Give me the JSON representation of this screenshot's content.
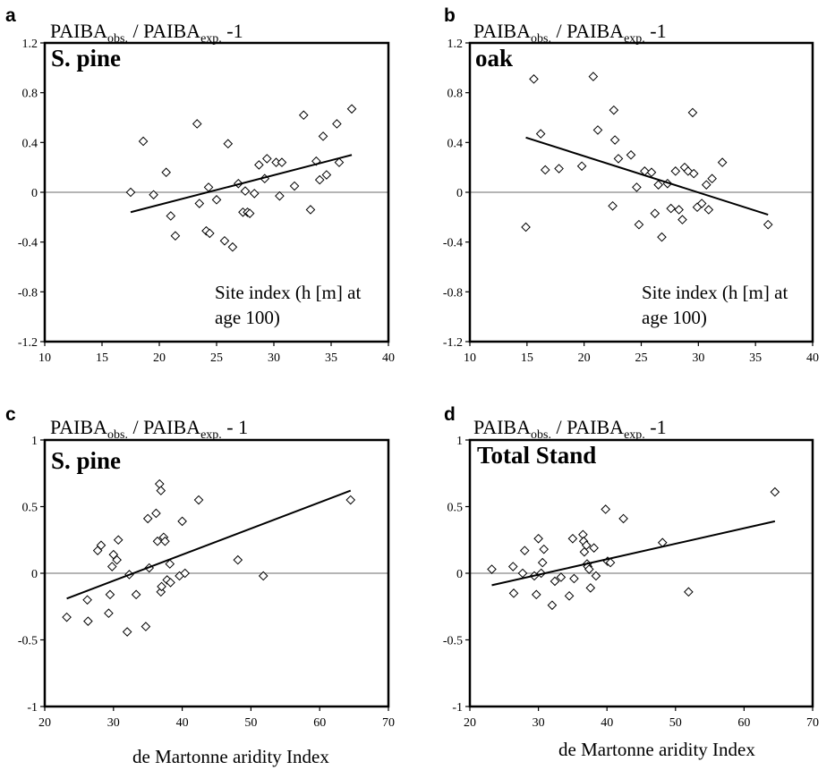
{
  "figure": {
    "ylabel_main_a": "PAIBA",
    "ylabel_sub_obs": "obs.",
    "ylabel_div": " / PAIBA",
    "ylabel_sub_exp": "exp.",
    "ylabel_tail_short": " -1",
    "ylabel_tail_spaced": " - 1"
  },
  "chart_data": [
    {
      "panel": "a",
      "type": "scatter",
      "inner_title": "S. pine",
      "annotation": [
        "Site index (h [m] at",
        "age 100)"
      ],
      "xlabel": "",
      "xlim": [
        10,
        40
      ],
      "ylim": [
        -1.2,
        1.2
      ],
      "xticks": [
        "10",
        "15",
        "20",
        "25",
        "30",
        "35",
        "40"
      ],
      "yticks": [
        "-1.2",
        "-0.8",
        "-0.4",
        "0",
        "0.4",
        "0.8",
        "1.2"
      ],
      "xtick_values": [
        10,
        15,
        20,
        25,
        30,
        35,
        40
      ],
      "ytick_values": [
        -1.2,
        -0.8,
        -0.4,
        0,
        0.4,
        0.8,
        1.2
      ],
      "marker": "diamond",
      "grid": false,
      "zero_line": true,
      "x": [
        17.5,
        18.6,
        19.5,
        20.6,
        21.0,
        21.4,
        23.3,
        23.5,
        24.1,
        24.3,
        24.4,
        25.0,
        25.7,
        26.0,
        26.4,
        26.9,
        27.3,
        27.5,
        27.7,
        27.9,
        28.3,
        28.7,
        29.2,
        29.4,
        30.2,
        30.5,
        30.7,
        31.8,
        32.6,
        33.2,
        33.7,
        34.0,
        34.3,
        34.6,
        35.5,
        35.7,
        36.8
      ],
      "y": [
        0.0,
        0.41,
        -0.02,
        0.16,
        -0.19,
        -0.35,
        0.55,
        -0.09,
        -0.31,
        0.04,
        -0.33,
        -0.06,
        -0.39,
        0.39,
        -0.44,
        0.07,
        -0.16,
        0.01,
        -0.16,
        -0.17,
        -0.01,
        0.22,
        0.11,
        0.27,
        0.24,
        -0.03,
        0.24,
        0.05,
        0.62,
        -0.14,
        0.25,
        0.1,
        0.45,
        0.14,
        0.55,
        0.24,
        0.67
      ],
      "trendline": {
        "x": [
          17.5,
          36.8
        ],
        "y": [
          -0.16,
          0.3
        ]
      }
    },
    {
      "panel": "b",
      "type": "scatter",
      "inner_title": "oak",
      "annotation": [
        "Site index (h [m] at",
        "age 100)"
      ],
      "xlabel": "",
      "xlim": [
        10,
        40
      ],
      "ylim": [
        -1.2,
        1.2
      ],
      "xticks": [
        "10",
        "15",
        "20",
        "25",
        "30",
        "35",
        "40"
      ],
      "yticks": [
        "-1.2",
        "-0.8",
        "-0.4",
        "0",
        "0.4",
        "0.8",
        "1.2"
      ],
      "xtick_values": [
        10,
        15,
        20,
        25,
        30,
        35,
        40
      ],
      "ytick_values": [
        -1.2,
        -0.8,
        -0.4,
        0,
        0.4,
        0.8,
        1.2
      ],
      "marker": "diamond",
      "grid": false,
      "zero_line": true,
      "x": [
        14.9,
        15.6,
        16.2,
        16.6,
        17.8,
        19.8,
        20.8,
        21.2,
        22.5,
        22.6,
        22.7,
        23.0,
        24.1,
        24.6,
        24.8,
        25.3,
        25.9,
        26.2,
        26.5,
        26.8,
        27.3,
        27.6,
        28.0,
        28.3,
        28.6,
        28.8,
        29.1,
        29.5,
        29.6,
        29.9,
        30.3,
        30.7,
        30.9,
        31.2,
        32.1,
        36.1
      ],
      "y": [
        -0.28,
        0.91,
        0.47,
        0.18,
        0.19,
        0.21,
        0.93,
        0.5,
        -0.11,
        0.66,
        0.42,
        0.27,
        0.3,
        0.04,
        -0.26,
        0.17,
        0.16,
        -0.17,
        0.06,
        -0.36,
        0.07,
        -0.13,
        0.17,
        -0.14,
        -0.22,
        0.2,
        0.17,
        0.64,
        0.15,
        -0.12,
        -0.09,
        0.06,
        -0.14,
        0.11,
        0.24,
        -0.26
      ],
      "trendline": {
        "x": [
          14.9,
          36.1
        ],
        "y": [
          0.44,
          -0.18
        ]
      }
    },
    {
      "panel": "c",
      "type": "scatter",
      "inner_title": "S. pine",
      "annotation": [],
      "xlabel": "",
      "xlim": [
        20,
        70
      ],
      "ylim": [
        -1,
        1
      ],
      "xticks": [
        "20",
        "30",
        "40",
        "50",
        "60",
        "70"
      ],
      "yticks": [
        "-1",
        "-0.5",
        "0",
        "0.5",
        "1"
      ],
      "xtick_values": [
        20,
        30,
        40,
        50,
        60,
        70
      ],
      "ytick_values": [
        -1,
        -0.5,
        0,
        0.5,
        1
      ],
      "marker": "diamond",
      "grid": false,
      "zero_line": true,
      "x": [
        23.2,
        26.2,
        26.3,
        27.7,
        28.2,
        29.3,
        29.5,
        29.8,
        30.0,
        30.5,
        30.7,
        32.0,
        32.3,
        33.3,
        34.7,
        35.0,
        35.2,
        36.2,
        36.4,
        36.7,
        36.9,
        36.9,
        37.0,
        37.3,
        37.5,
        37.8,
        38.2,
        38.3,
        39.6,
        40.0,
        40.4,
        42.4,
        48.1,
        51.8,
        64.5
      ],
      "y": [
        -0.33,
        -0.2,
        -0.36,
        0.17,
        0.21,
        -0.3,
        -0.16,
        0.05,
        0.14,
        0.1,
        0.25,
        -0.44,
        -0.01,
        -0.16,
        -0.4,
        0.41,
        0.04,
        0.45,
        0.24,
        0.67,
        0.62,
        -0.14,
        -0.1,
        0.27,
        0.24,
        -0.05,
        0.07,
        -0.07,
        -0.02,
        0.39,
        0.0,
        0.55,
        0.1,
        -0.02,
        0.55
      ],
      "trendline": {
        "x": [
          23.2,
          64.5
        ],
        "y": [
          -0.19,
          0.62
        ]
      }
    },
    {
      "panel": "d",
      "type": "scatter",
      "inner_title": "Total Stand",
      "annotation": [],
      "xlabel": "de Martonne aridity Index",
      "xlim": [
        20,
        70
      ],
      "ylim": [
        -1,
        1
      ],
      "xticks": [
        "20",
        "30",
        "40",
        "50",
        "60",
        "70"
      ],
      "yticks": [
        "-1",
        "-0.5",
        "0",
        "0.5",
        "1"
      ],
      "xtick_values": [
        20,
        30,
        40,
        50,
        60,
        70
      ],
      "ytick_values": [
        -1,
        -0.5,
        0,
        0.5,
        1
      ],
      "marker": "diamond",
      "grid": false,
      "zero_line": true,
      "x": [
        23.2,
        26.3,
        26.4,
        27.7,
        28.0,
        29.4,
        29.7,
        30.0,
        30.4,
        30.6,
        30.8,
        32.0,
        32.4,
        33.3,
        34.5,
        35.0,
        35.2,
        36.5,
        36.6,
        36.7,
        37.0,
        37.1,
        37.2,
        37.4,
        37.6,
        38.1,
        38.4,
        39.8,
        40.1,
        40.5,
        42.4,
        48.1,
        51.9,
        64.5
      ],
      "y": [
        0.03,
        0.05,
        -0.15,
        0.0,
        0.17,
        -0.02,
        -0.16,
        0.26,
        0.0,
        0.08,
        0.18,
        -0.24,
        -0.06,
        -0.03,
        -0.17,
        0.26,
        -0.04,
        0.29,
        0.24,
        0.16,
        0.21,
        0.07,
        0.05,
        0.03,
        -0.11,
        0.19,
        -0.02,
        0.48,
        0.09,
        0.08,
        0.41,
        0.23,
        -0.14,
        0.61
      ],
      "trendline": {
        "x": [
          23.2,
          64.5
        ],
        "y": [
          -0.09,
          0.39
        ]
      }
    }
  ]
}
